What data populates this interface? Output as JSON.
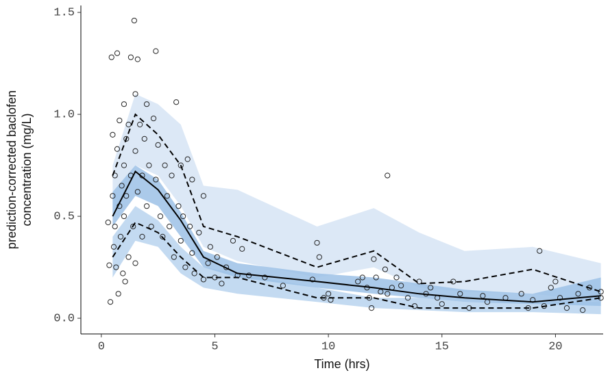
{
  "chart_data": {
    "type": "scatter",
    "xlabel": "Time (hrs)",
    "ylabel": [
      "prediction-corrected baclofen",
      "concentration (mg/L)"
    ],
    "xlim": [
      -0.9,
      22.1
    ],
    "xticks": [
      0,
      5,
      10,
      15,
      20
    ],
    "ylim": [
      -0.077,
      1.534
    ],
    "yticks": [
      {
        "value": 0,
        "label": "0.0"
      },
      0.5,
      {
        "value": 1,
        "label": "1.0"
      },
      1.5
    ],
    "point_color": "#222222",
    "x": [
      0.3,
      0.35,
      0.4,
      0.45,
      0.5,
      0.5,
      0.55,
      0.6,
      0.6,
      0.65,
      0.7,
      0.7,
      0.75,
      0.8,
      0.8,
      0.85,
      0.9,
      0.95,
      1.0,
      1.0,
      1.0,
      1.05,
      1.1,
      1.1,
      1.2,
      1.2,
      1.3,
      1.3,
      1.4,
      1.45,
      1.5,
      1.5,
      1.5,
      1.6,
      1.6,
      1.7,
      1.8,
      1.8,
      1.9,
      2.0,
      2.0,
      2.1,
      2.2,
      2.3,
      2.4,
      2.4,
      2.5,
      2.6,
      2.7,
      2.8,
      2.9,
      3.0,
      3.1,
      3.2,
      3.3,
      3.4,
      3.5,
      3.5,
      3.6,
      3.7,
      3.8,
      3.9,
      4.0,
      4.0,
      4.1,
      4.3,
      4.5,
      4.5,
      4.7,
      4.8,
      5.0,
      5.1,
      5.3,
      5.5,
      5.8,
      6.0,
      6.2,
      6.5,
      7.2,
      8.0,
      9.3,
      9.5,
      9.6,
      9.8,
      10.0,
      10.1,
      11.3,
      11.5,
      11.7,
      11.8,
      11.9,
      12.0,
      12.1,
      12.3,
      12.5,
      12.6,
      12.6,
      12.8,
      13.0,
      13.2,
      13.5,
      13.8,
      14.0,
      14.3,
      14.5,
      14.8,
      15.0,
      15.5,
      15.8,
      16.2,
      16.8,
      17.0,
      17.8,
      18.5,
      18.8,
      19.0,
      19.3,
      19.5,
      19.8,
      20.0,
      20.2,
      20.5,
      21.0,
      21.2,
      21.5,
      22.0,
      22.0
    ],
    "values": [
      0.47,
      0.26,
      0.08,
      1.28,
      0.9,
      0.6,
      0.35,
      0.7,
      0.45,
      0.25,
      1.3,
      0.83,
      0.12,
      0.55,
      0.97,
      0.4,
      0.65,
      0.22,
      1.05,
      0.75,
      0.5,
      0.18,
      0.88,
      0.6,
      0.95,
      0.3,
      1.28,
      0.7,
      0.45,
      1.46,
      1.1,
      0.82,
      0.27,
      1.27,
      0.62,
      0.95,
      0.7,
      0.4,
      0.88,
      1.05,
      0.55,
      0.75,
      0.45,
      0.98,
      1.31,
      0.68,
      0.85,
      0.5,
      0.4,
      0.75,
      0.6,
      0.45,
      0.7,
      0.3,
      1.06,
      0.55,
      0.75,
      0.38,
      0.5,
      0.25,
      0.78,
      0.45,
      0.68,
      0.32,
      0.22,
      0.42,
      0.19,
      0.6,
      0.27,
      0.35,
      0.2,
      0.3,
      0.17,
      0.25,
      0.38,
      0.21,
      0.34,
      0.21,
      0.2,
      0.16,
      0.19,
      0.37,
      0.3,
      0.1,
      0.12,
      0.09,
      0.18,
      0.2,
      0.15,
      0.1,
      0.05,
      0.29,
      0.2,
      0.13,
      0.24,
      0.12,
      0.7,
      0.15,
      0.2,
      0.16,
      0.1,
      0.06,
      0.18,
      0.12,
      0.15,
      0.1,
      0.07,
      0.18,
      0.12,
      0.05,
      0.11,
      0.08,
      0.1,
      0.12,
      0.05,
      0.09,
      0.33,
      0.06,
      0.15,
      0.18,
      0.1,
      0.05,
      0.12,
      0.04,
      0.15,
      0.1,
      0.13
    ],
    "bin_times": [
      0.5,
      1.5,
      2.5,
      3.5,
      4.5,
      6,
      9.5,
      12,
      14,
      16,
      19,
      22
    ],
    "bands": [
      {
        "color": "#d6e4f4",
        "upper": [
          0.75,
          1.1,
          1.05,
          0.95,
          0.65,
          0.63,
          0.45,
          0.54,
          0.42,
          0.33,
          0.35,
          0.27
        ],
        "lower": [
          0.5,
          0.75,
          0.7,
          0.55,
          0.35,
          0.28,
          0.2,
          0.25,
          0.15,
          0.13,
          0.12,
          0.08
        ]
      },
      {
        "color": "#b9d3ee",
        "upper": [
          0.4,
          0.55,
          0.48,
          0.35,
          0.25,
          0.22,
          0.15,
          0.1,
          0.1,
          0.08,
          0.08,
          0.08
        ],
        "lower": [
          0.2,
          0.38,
          0.35,
          0.22,
          0.15,
          0.12,
          0.08,
          0.05,
          0.04,
          0.03,
          0.03,
          0.02
        ]
      },
      {
        "color": "#9cc1e6",
        "upper": [
          0.62,
          0.75,
          0.68,
          0.52,
          0.33,
          0.27,
          0.22,
          0.2,
          0.17,
          0.14,
          0.12,
          0.2
        ],
        "lower": [
          0.45,
          0.6,
          0.55,
          0.4,
          0.25,
          0.2,
          0.15,
          0.12,
          0.1,
          0.08,
          0.07,
          0.06
        ]
      }
    ],
    "lines": [
      {
        "style": "solid",
        "values": [
          0.5,
          0.72,
          0.63,
          0.48,
          0.3,
          0.22,
          0.18,
          0.15,
          0.12,
          0.1,
          0.08,
          0.11
        ]
      },
      {
        "style": "dashed",
        "values": [
          0.7,
          1.0,
          0.9,
          0.75,
          0.45,
          0.4,
          0.25,
          0.33,
          0.17,
          0.18,
          0.24,
          0.13
        ]
      },
      {
        "style": "dashed",
        "values": [
          0.3,
          0.47,
          0.42,
          0.3,
          0.2,
          0.2,
          0.1,
          0.1,
          0.05,
          0.05,
          0.05,
          0.1
        ]
      }
    ]
  }
}
